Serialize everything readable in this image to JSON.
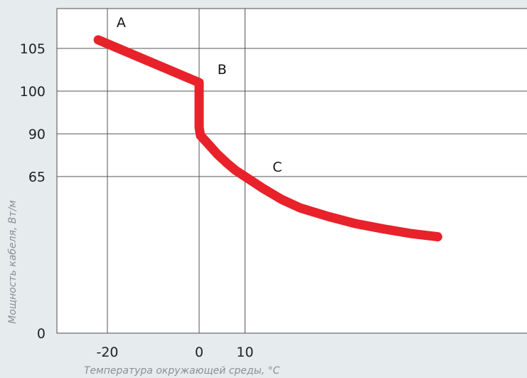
{
  "chart_data": {
    "type": "line",
    "xlabel": "Температура окружающей среды, °С",
    "ylabel": "Мощность кабеля, Вт/м",
    "x_ticks": [
      {
        "value": -20,
        "label": "-20"
      },
      {
        "value": 0,
        "label": "0"
      },
      {
        "value": 10,
        "label": "10"
      }
    ],
    "y_ticks": [
      {
        "value": 0,
        "label": "0"
      },
      {
        "value": 65,
        "label": "65"
      },
      {
        "value": 90,
        "label": "90"
      },
      {
        "value": 100,
        "label": "100"
      },
      {
        "value": 105,
        "label": "105"
      }
    ],
    "series": [
      {
        "color": "#e8222a",
        "points": [
          {
            "x": -22,
            "tick_pos": 106
          },
          {
            "x": 0,
            "tick_pos": 101
          },
          {
            "x": 0,
            "tick_pos": 91.5
          },
          {
            "x": 0.3,
            "tick_pos": 89
          },
          {
            "x": 2,
            "tick_pos": 84
          },
          {
            "x": 4,
            "tick_pos": 78
          },
          {
            "x": 6,
            "tick_pos": 73
          },
          {
            "x": 8,
            "tick_pos": 68.5
          },
          {
            "x": 10,
            "tick_pos": 65
          },
          {
            "x": 14,
            "tick_pos": 60
          },
          {
            "x": 18,
            "tick_pos": 55.5
          },
          {
            "x": 22,
            "tick_pos": 52
          },
          {
            "x": 28,
            "tick_pos": 48.5
          },
          {
            "x": 34,
            "tick_pos": 45.5
          },
          {
            "x": 40,
            "tick_pos": 43.3
          },
          {
            "x": 46,
            "tick_pos": 41.4
          },
          {
            "x": 52,
            "tick_pos": 40
          }
        ]
      }
    ],
    "annotations": [
      {
        "label": "A",
        "x": -18,
        "tick_pos": 107.5
      },
      {
        "label": "B",
        "x": 4,
        "tick_pos": 102
      },
      {
        "label": "C",
        "x": 16,
        "tick_pos": 68
      }
    ],
    "grid": true,
    "y_scale": "nonlinear (tick positions)"
  }
}
